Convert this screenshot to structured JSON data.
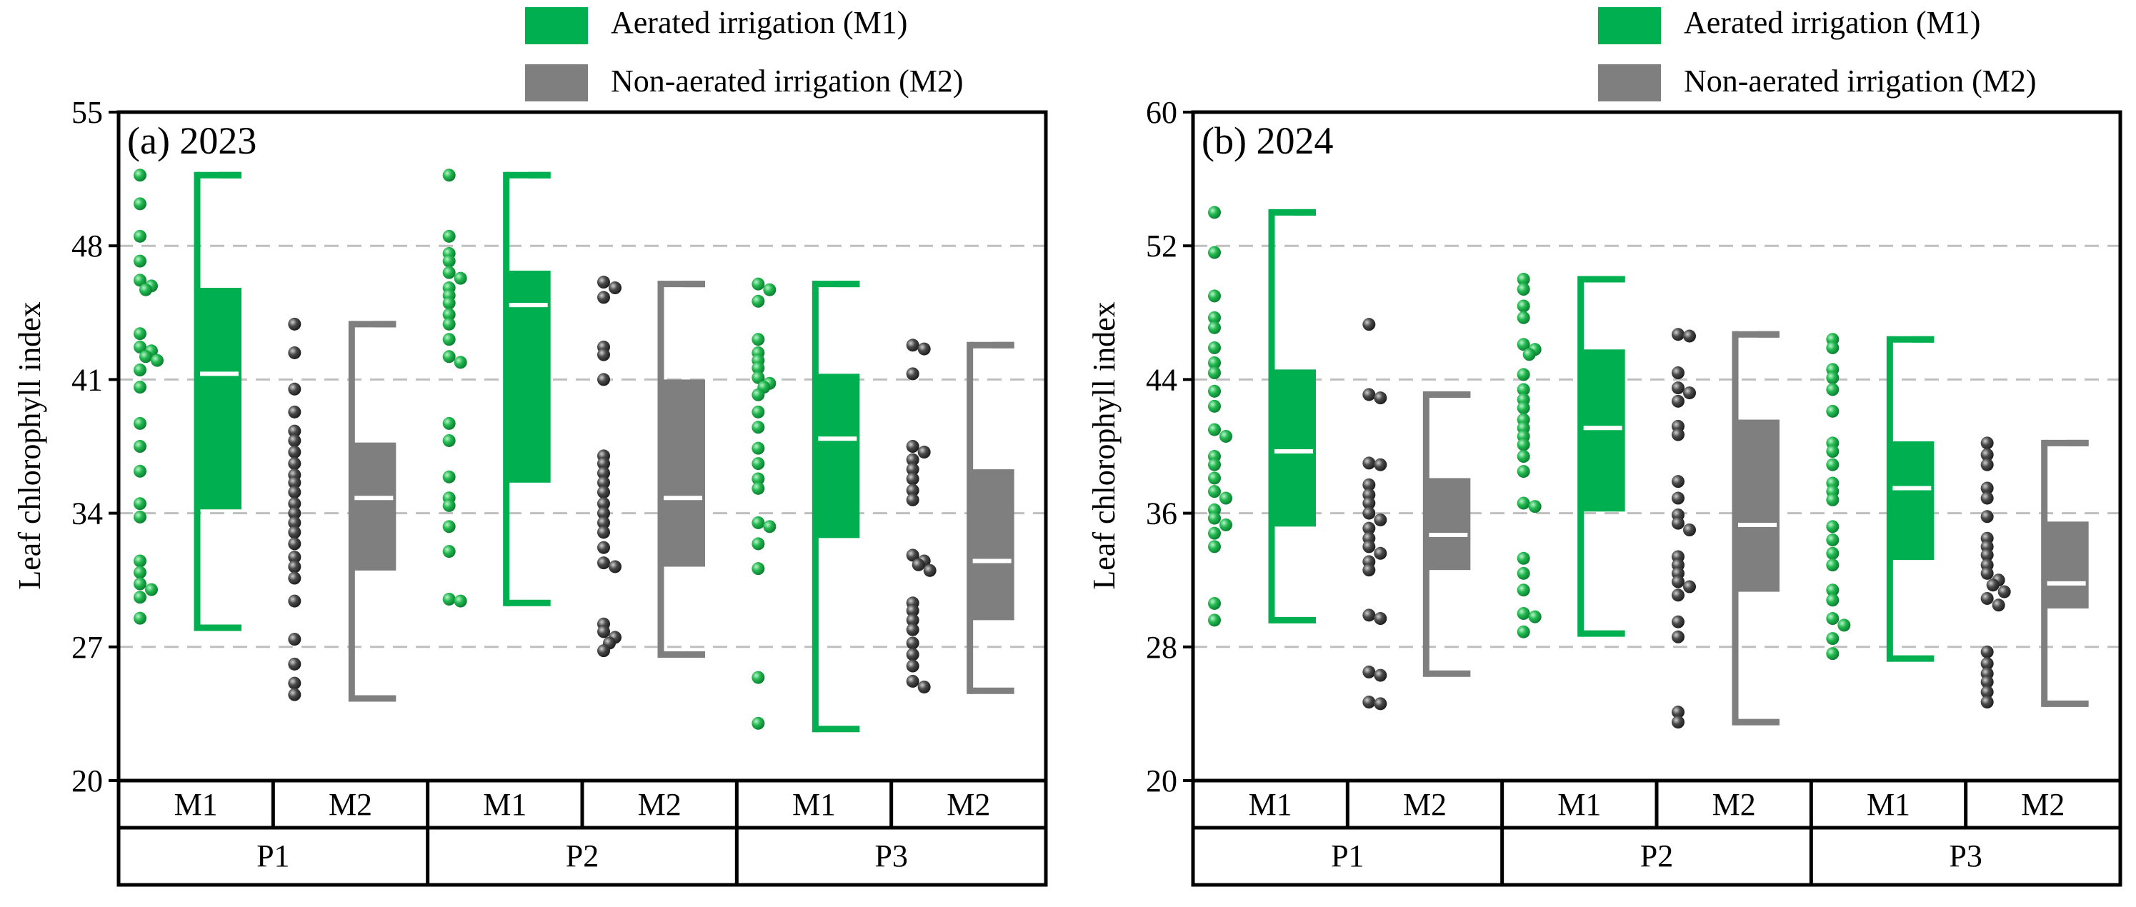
{
  "colors": {
    "m1": "#00b050",
    "m2": "#7f7f7f",
    "m1_dot": "#12a845",
    "m2_dot": "#404040",
    "median": "#ffffff",
    "grid": "#bfbfbf"
  },
  "chart_data": [
    {
      "type": "box-scatter",
      "panel_label": "(a) 2023",
      "ylabel": "Leaf chlorophyll index",
      "ylim": [
        20,
        55
      ],
      "yticks": [
        "20",
        "27",
        "34",
        "41",
        "48",
        "55"
      ],
      "legend": [
        {
          "key": "m1",
          "label": "Aerated irrigation (M1)"
        },
        {
          "key": "m2",
          "label": "Non-aerated irrigation (M2)"
        }
      ],
      "groups": [
        {
          "label": "M1",
          "parent": "P1",
          "series": "m1",
          "stats": {
            "min": 28.0,
            "q1": 34.2,
            "median": 41.3,
            "q3": 45.8,
            "max": 51.7
          },
          "points": [
            51.7,
            50.2,
            48.5,
            47.2,
            46.2,
            45.9,
            45.7,
            43.4,
            42.7,
            42.5,
            42.2,
            42.0,
            41.5,
            40.6,
            38.7,
            37.5,
            36.2,
            34.5,
            33.8,
            31.5,
            30.9,
            30.3,
            30.0,
            29.6,
            28.5
          ]
        },
        {
          "label": "M2",
          "parent": "P1",
          "series": "m2",
          "stats": {
            "min": 24.3,
            "q1": 31.0,
            "median": 34.8,
            "q3": 37.7,
            "max": 43.9
          },
          "points": [
            43.9,
            42.4,
            40.5,
            39.3,
            38.3,
            37.8,
            37.2,
            36.6,
            36.0,
            35.6,
            35.1,
            34.5,
            34.0,
            33.5,
            33.0,
            32.4,
            31.7,
            31.2,
            30.6,
            29.4,
            27.4,
            26.1,
            25.1,
            24.5
          ]
        },
        {
          "label": "M1",
          "parent": "P2",
          "series": "m1",
          "stats": {
            "min": 29.3,
            "q1": 35.6,
            "median": 44.9,
            "q3": 46.7,
            "max": 51.7
          },
          "points": [
            51.7,
            48.5,
            47.6,
            47.2,
            46.6,
            46.3,
            45.8,
            45.4,
            45.0,
            44.4,
            43.9,
            43.1,
            42.2,
            41.9,
            38.7,
            37.8,
            35.9,
            34.8,
            34.4,
            33.3,
            32.0,
            29.5,
            29.4
          ]
        },
        {
          "label": "M2",
          "parent": "P2",
          "series": "m2",
          "stats": {
            "min": 26.6,
            "q1": 31.2,
            "median": 34.8,
            "q3": 41.0,
            "max": 46.0
          },
          "points": [
            46.1,
            45.8,
            45.3,
            42.7,
            42.3,
            41.0,
            37.0,
            36.6,
            36.1,
            35.6,
            35.1,
            34.5,
            34.0,
            33.5,
            33.0,
            32.2,
            31.4,
            31.2,
            28.2,
            27.8,
            27.5,
            27.2,
            26.8
          ]
        },
        {
          "label": "M1",
          "parent": "P3",
          "series": "m1",
          "stats": {
            "min": 22.7,
            "q1": 32.7,
            "median": 37.9,
            "q3": 41.3,
            "max": 46.0
          },
          "points": [
            46.0,
            45.7,
            45.1,
            43.1,
            42.4,
            42.0,
            41.6,
            41.1,
            40.8,
            40.6,
            40.2,
            39.3,
            38.5,
            37.4,
            36.6,
            35.8,
            35.3,
            33.5,
            33.3,
            32.4,
            31.1,
            25.4,
            23.0
          ]
        },
        {
          "label": "M2",
          "parent": "P3",
          "series": "m2",
          "stats": {
            "min": 24.7,
            "q1": 28.4,
            "median": 31.5,
            "q3": 36.3,
            "max": 42.8
          },
          "points": [
            42.8,
            42.6,
            41.3,
            37.5,
            37.2,
            36.8,
            36.3,
            35.8,
            35.2,
            34.7,
            31.8,
            31.5,
            31.3,
            31.0,
            29.3,
            28.9,
            28.4,
            27.9,
            27.2,
            26.6,
            26.0,
            25.2,
            24.9
          ]
        }
      ],
      "parent_groups": [
        "P1",
        "P2",
        "P3"
      ]
    },
    {
      "type": "box-scatter",
      "panel_label": "(b) 2024",
      "ylabel": "Leaf chlorophyll index",
      "ylim": [
        20,
        60
      ],
      "yticks": [
        "20",
        "28",
        "36",
        "44",
        "52",
        "60"
      ],
      "legend": [
        {
          "key": "m1",
          "label": "Aerated irrigation (M1)"
        },
        {
          "key": "m2",
          "label": "Non-aerated irrigation (M2)"
        }
      ],
      "groups": [
        {
          "label": "M1",
          "parent": "P1",
          "series": "m1",
          "stats": {
            "min": 29.6,
            "q1": 35.2,
            "median": 39.7,
            "q3": 44.6,
            "max": 54.0
          },
          "points": [
            54.0,
            51.6,
            49.0,
            47.7,
            47.1,
            45.9,
            45.0,
            44.4,
            43.3,
            42.4,
            41.0,
            40.6,
            39.4,
            38.9,
            38.1,
            37.3,
            36.9,
            36.2,
            35.7,
            35.3,
            34.8,
            34.0,
            30.6,
            29.6
          ]
        },
        {
          "label": "M2",
          "parent": "P1",
          "series": "m2",
          "stats": {
            "min": 26.4,
            "q1": 32.6,
            "median": 34.7,
            "q3": 38.1,
            "max": 43.1
          },
          "points": [
            47.3,
            43.1,
            42.9,
            39.0,
            38.9,
            37.7,
            37.1,
            36.6,
            36.0,
            35.6,
            35.1,
            34.5,
            34.0,
            33.6,
            33.1,
            32.6,
            29.9,
            29.7,
            26.5,
            26.3,
            24.7,
            24.6
          ]
        },
        {
          "label": "M1",
          "parent": "P2",
          "series": "m1",
          "stats": {
            "min": 28.8,
            "q1": 36.1,
            "median": 41.1,
            "q3": 45.8,
            "max": 50.0
          },
          "points": [
            50.0,
            49.4,
            48.4,
            47.7,
            46.1,
            45.8,
            45.5,
            44.3,
            43.4,
            42.8,
            42.3,
            41.6,
            41.1,
            40.6,
            40.1,
            39.4,
            38.5,
            36.6,
            36.4,
            33.3,
            32.4,
            31.4,
            30.0,
            29.8,
            28.9
          ]
        },
        {
          "label": "M2",
          "parent": "P2",
          "series": "m2",
          "stats": {
            "min": 23.5,
            "q1": 31.3,
            "median": 35.3,
            "q3": 41.6,
            "max": 46.7
          },
          "points": [
            46.7,
            46.6,
            44.4,
            43.5,
            43.2,
            42.7,
            41.2,
            40.7,
            37.9,
            36.9,
            35.9,
            35.4,
            35.0,
            33.4,
            32.9,
            32.4,
            31.9,
            31.6,
            31.1,
            29.5,
            28.6,
            24.1,
            23.5
          ]
        },
        {
          "label": "M1",
          "parent": "P3",
          "series": "m1",
          "stats": {
            "min": 27.3,
            "q1": 33.2,
            "median": 37.5,
            "q3": 40.3,
            "max": 46.4
          },
          "points": [
            46.4,
            45.9,
            44.6,
            44.1,
            43.4,
            42.1,
            40.2,
            39.7,
            38.9,
            37.8,
            37.3,
            36.8,
            35.2,
            34.4,
            33.6,
            32.9,
            31.4,
            30.8,
            29.7,
            29.3,
            28.5,
            27.6
          ]
        },
        {
          "label": "M2",
          "parent": "P3",
          "series": "m2",
          "stats": {
            "min": 24.6,
            "q1": 30.3,
            "median": 31.8,
            "q3": 35.5,
            "max": 40.2
          },
          "points": [
            40.2,
            39.5,
            38.9,
            37.5,
            36.9,
            35.8,
            34.5,
            34.0,
            33.5,
            32.9,
            32.4,
            32.0,
            31.7,
            31.3,
            30.9,
            30.5,
            27.7,
            27.0,
            26.4,
            25.9,
            25.3,
            24.7
          ]
        }
      ],
      "parent_groups": [
        "P1",
        "P2",
        "P3"
      ]
    }
  ]
}
